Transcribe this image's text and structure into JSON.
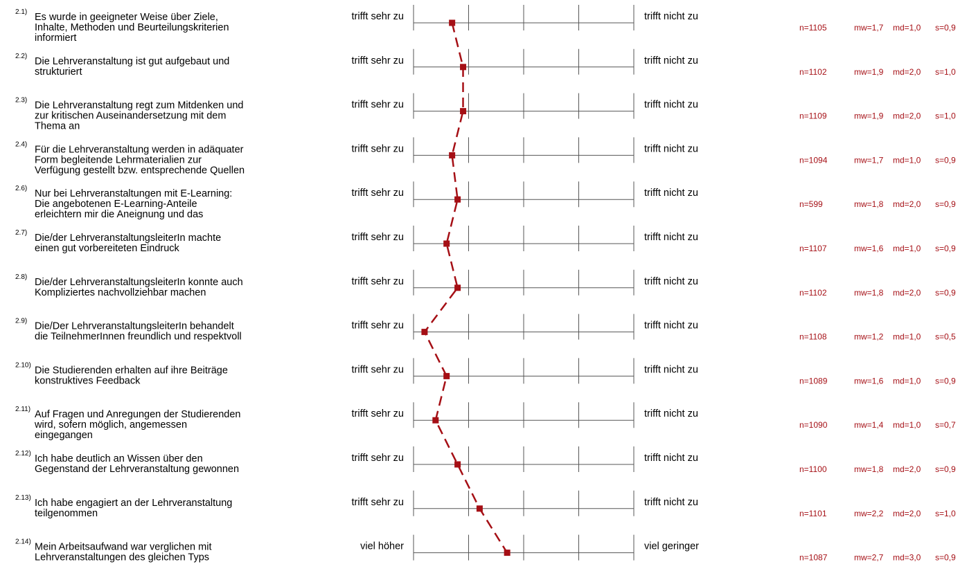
{
  "chart_data": {
    "type": "line",
    "scale_points": 5,
    "xlim": [
      1,
      5
    ],
    "series_color": "#a50f15",
    "items": [
      {
        "num": "2.1)",
        "question": [
          "Es wurde in geeigneter Weise über Ziele,",
          "Inhalte, Methoden und Beurteilungskriterien",
          "informiert"
        ],
        "left": "trifft sehr zu",
        "right": "trifft nicht zu",
        "n": "n=1105",
        "mw": "mw=1,7",
        "md": "md=1,0",
        "s": "s=0,9",
        "value": 1.7
      },
      {
        "num": "2.2)",
        "question": [
          "Die Lehrveranstaltung ist gut aufgebaut und",
          "strukturiert"
        ],
        "left": "trifft sehr zu",
        "right": "trifft nicht zu",
        "n": "n=1102",
        "mw": "mw=1,9",
        "md": "md=2,0",
        "s": "s=1,0",
        "value": 1.9
      },
      {
        "num": "2.3)",
        "question": [
          "Die Lehrveranstaltung regt zum Mitdenken und",
          "zur kritischen Auseinandersetzung mit dem",
          "Thema an"
        ],
        "left": "trifft sehr zu",
        "right": "trifft nicht zu",
        "n": "n=1109",
        "mw": "mw=1,9",
        "md": "md=2,0",
        "s": "s=1,0",
        "value": 1.9
      },
      {
        "num": "2.4)",
        "question": [
          "Für die Lehrveranstaltung werden in adäquater",
          "Form begleitende Lehrmaterialien zur",
          "Verfügung gestellt bzw. entsprechende Quellen"
        ],
        "left": "trifft sehr zu",
        "right": "trifft nicht zu",
        "n": "n=1094",
        "mw": "mw=1,7",
        "md": "md=1,0",
        "s": "s=0,9",
        "value": 1.7
      },
      {
        "num": "2.6)",
        "question": [
          "Nur bei Lehrveranstaltungen mit E-Learning:",
          "Die angebotenen E-Learning-Anteile",
          "erleichtern mir die Aneignung und das"
        ],
        "left": "trifft sehr zu",
        "right": "trifft nicht zu",
        "n": "n=599",
        "mw": "mw=1,8",
        "md": "md=2,0",
        "s": "s=0,9",
        "value": 1.8
      },
      {
        "num": "2.7)",
        "question": [
          "Die/der LehrveranstaltungsleiterIn machte",
          "einen gut vorbereiteten Eindruck"
        ],
        "left": "trifft sehr zu",
        "right": "trifft nicht zu",
        "n": "n=1107",
        "mw": "mw=1,6",
        "md": "md=1,0",
        "s": "s=0,9",
        "value": 1.6
      },
      {
        "num": "2.8)",
        "question": [
          "Die/der LehrveranstaltungsleiterIn konnte auch",
          "Kompliziertes nachvollziehbar machen"
        ],
        "left": "trifft sehr zu",
        "right": "trifft nicht zu",
        "n": "n=1102",
        "mw": "mw=1,8",
        "md": "md=2,0",
        "s": "s=0,9",
        "value": 1.8
      },
      {
        "num": "2.9)",
        "question": [
          "Die/Der LehrveranstaltungsleiterIn behandelt",
          "die TeilnehmerInnen freundlich und respektvoll"
        ],
        "left": "trifft sehr zu",
        "right": "trifft nicht zu",
        "n": "n=1108",
        "mw": "mw=1,2",
        "md": "md=1,0",
        "s": "s=0,5",
        "value": 1.2
      },
      {
        "num": "2.10)",
        "question": [
          "Die Studierenden erhalten auf ihre Beiträge",
          "konstruktives Feedback"
        ],
        "left": "trifft sehr zu",
        "right": "trifft nicht zu",
        "n": "n=1089",
        "mw": "mw=1,6",
        "md": "md=1,0",
        "s": "s=0,9",
        "value": 1.6
      },
      {
        "num": "2.11)",
        "question": [
          "Auf Fragen und Anregungen der Studierenden",
          "wird, sofern möglich, angemessen",
          "eingegangen"
        ],
        "left": "trifft sehr zu",
        "right": "trifft nicht zu",
        "n": "n=1090",
        "mw": "mw=1,4",
        "md": "md=1,0",
        "s": "s=0,7",
        "value": 1.4
      },
      {
        "num": "2.12)",
        "question": [
          "Ich habe deutlich an Wissen über den",
          "Gegenstand der Lehrveranstaltung gewonnen"
        ],
        "left": "trifft sehr zu",
        "right": "trifft nicht zu",
        "n": "n=1100",
        "mw": "mw=1,8",
        "md": "md=2,0",
        "s": "s=0,9",
        "value": 1.8
      },
      {
        "num": "2.13)",
        "question": [
          "Ich habe engagiert an der Lehrveranstaltung",
          "teilgenommen"
        ],
        "left": "trifft sehr zu",
        "right": "trifft nicht zu",
        "n": "n=1101",
        "mw": "mw=2,2",
        "md": "md=2,0",
        "s": "s=1,0",
        "value": 2.2
      },
      {
        "num": "2.14)",
        "question": [
          "Mein Arbeitsaufwand war verglichen mit",
          "Lehrveranstaltungen des gleichen Typs"
        ],
        "left": "viel höher",
        "right": "viel geringer",
        "n": "n=1087",
        "mw": "mw=2,7",
        "md": "md=3,0",
        "s": "s=0,9",
        "value": 2.7
      }
    ]
  }
}
